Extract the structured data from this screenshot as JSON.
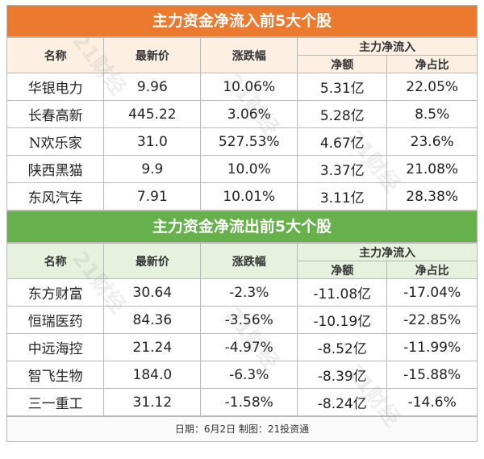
{
  "inflow": {
    "title": "主力资金净流入前5大个股",
    "headers": {
      "name": "名称",
      "price": "最新价",
      "change": "涨跌幅",
      "netflow": "主力净流入",
      "amount": "净额",
      "ratio": "净占比"
    },
    "rows": [
      {
        "name": "华银电力",
        "price": "9.96",
        "change": "10.06%",
        "amount": "5.31亿",
        "ratio": "22.05%"
      },
      {
        "name": "长春高新",
        "price": "445.22",
        "change": "3.06%",
        "amount": "5.28亿",
        "ratio": "8.5%"
      },
      {
        "name": "N欢乐家",
        "price": "31.0",
        "change": "527.53%",
        "amount": "4.67亿",
        "ratio": "23.6%"
      },
      {
        "name": "陕西黑猫",
        "price": "9.9",
        "change": "10.0%",
        "amount": "3.37亿",
        "ratio": "21.08%"
      },
      {
        "name": "东风汽车",
        "price": "7.91",
        "change": "10.01%",
        "amount": "3.11亿",
        "ratio": "28.38%"
      }
    ]
  },
  "outflow": {
    "title": "主力资金净流出前5大个股",
    "headers": {
      "name": "名称",
      "price": "最新价",
      "change": "涨跌幅",
      "netflow": "主力净流入",
      "amount": "净额",
      "ratio": "净占比"
    },
    "rows": [
      {
        "name": "东方财富",
        "price": "30.64",
        "change": "-2.3%",
        "amount": "-11.08亿",
        "ratio": "-17.04%"
      },
      {
        "name": "恒瑞医药",
        "price": "84.36",
        "change": "-3.56%",
        "amount": "-10.19亿",
        "ratio": "-22.85%"
      },
      {
        "name": "中远海控",
        "price": "21.24",
        "change": "-4.97%",
        "amount": "-8.52亿",
        "ratio": "-11.99%"
      },
      {
        "name": "智飞生物",
        "price": "184.0",
        "change": "-6.3%",
        "amount": "-8.39亿",
        "ratio": "-15.88%"
      },
      {
        "name": "三一重工",
        "price": "31.12",
        "change": "-1.58%",
        "amount": "-8.24亿",
        "ratio": "-14.6%"
      }
    ]
  },
  "footer": "日期：6月2日 制图：21投资通",
  "watermark": "21财经",
  "colors": {
    "inflow_header": "#ec7a2e",
    "outflow_header": "#66b14c"
  }
}
